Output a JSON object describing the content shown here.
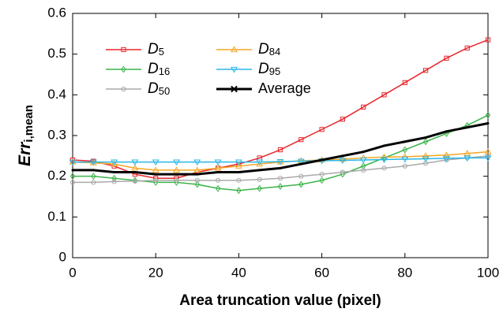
{
  "chart_data": {
    "type": "line",
    "xlabel": "Area truncation value (pixel)",
    "ylabel": {
      "text": "Err",
      "subscript": "i,mean"
    },
    "x": [
      0,
      5,
      10,
      15,
      20,
      25,
      30,
      35,
      40,
      45,
      50,
      55,
      60,
      65,
      70,
      75,
      80,
      85,
      90,
      95,
      100
    ],
    "series": [
      {
        "name": "D5",
        "color": "#e8262b",
        "marker": "square",
        "values": [
          0.24,
          0.237,
          0.225,
          0.205,
          0.195,
          0.195,
          0.21,
          0.22,
          0.23,
          0.245,
          0.265,
          0.29,
          0.315,
          0.34,
          0.37,
          0.4,
          0.43,
          0.46,
          0.49,
          0.515,
          0.535
        ]
      },
      {
        "name": "D16",
        "color": "#3cb44a",
        "marker": "diamond",
        "values": [
          0.2,
          0.2,
          0.195,
          0.19,
          0.185,
          0.185,
          0.18,
          0.17,
          0.165,
          0.17,
          0.175,
          0.18,
          0.19,
          0.205,
          0.225,
          0.245,
          0.265,
          0.285,
          0.305,
          0.325,
          0.35
        ]
      },
      {
        "name": "D50",
        "color": "#aaaaaa",
        "marker": "circle",
        "values": [
          0.185,
          0.185,
          0.187,
          0.188,
          0.19,
          0.19,
          0.19,
          0.19,
          0.19,
          0.192,
          0.195,
          0.2,
          0.205,
          0.21,
          0.215,
          0.22,
          0.225,
          0.232,
          0.24,
          0.245,
          0.25
        ]
      },
      {
        "name": "D84",
        "color": "#f5a623",
        "marker": "triangle-up",
        "values": [
          0.235,
          0.233,
          0.23,
          0.22,
          0.215,
          0.215,
          0.215,
          0.22,
          0.225,
          0.23,
          0.235,
          0.238,
          0.24,
          0.242,
          0.245,
          0.247,
          0.248,
          0.25,
          0.252,
          0.256,
          0.26
        ]
      },
      {
        "name": "D95",
        "color": "#29b6e8",
        "marker": "triangle-down",
        "values": [
          0.235,
          0.235,
          0.235,
          0.235,
          0.235,
          0.235,
          0.235,
          0.235,
          0.235,
          0.235,
          0.236,
          0.237,
          0.238,
          0.239,
          0.24,
          0.241,
          0.242,
          0.243,
          0.244,
          0.245,
          0.245
        ]
      },
      {
        "name": "Average",
        "color": "#000000",
        "marker": "x",
        "values": [
          0.215,
          0.215,
          0.21,
          0.21,
          0.205,
          0.205,
          0.205,
          0.21,
          0.21,
          0.215,
          0.22,
          0.23,
          0.24,
          0.25,
          0.26,
          0.275,
          0.285,
          0.295,
          0.31,
          0.32,
          0.33
        ]
      }
    ],
    "xlim": [
      0,
      100
    ],
    "xticks": [
      0,
      20,
      40,
      60,
      80,
      100
    ],
    "ylim": [
      0,
      0.6
    ],
    "yticks": [
      0,
      0.1,
      0.2,
      0.3,
      0.4,
      0.5,
      0.6
    ],
    "legend": "upper left"
  }
}
